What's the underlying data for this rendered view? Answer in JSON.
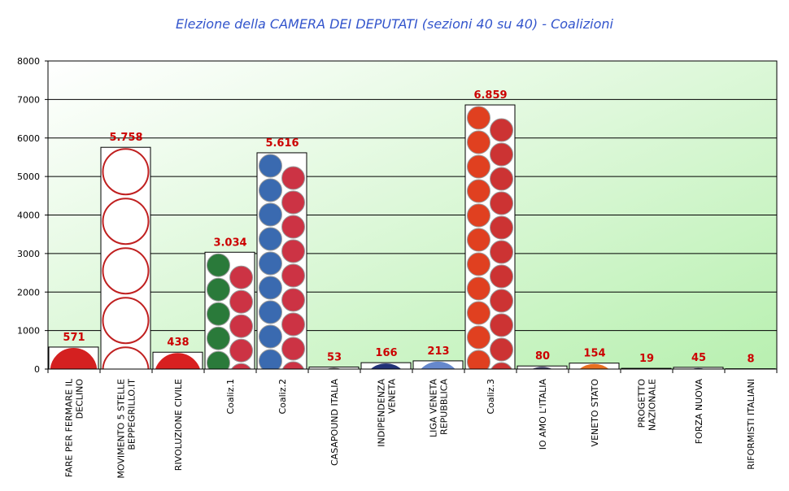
{
  "chart_data": {
    "type": "bar",
    "title": "Elezione della CAMERA DEI DEPUTATI (sezioni 40 su 40) - Coalizioni",
    "xlabel": "",
    "ylabel": "",
    "ylim": [
      0,
      8000
    ],
    "yticks": [
      0,
      1000,
      2000,
      3000,
      4000,
      5000,
      6000,
      7000,
      8000
    ],
    "grid": true,
    "categories": [
      [
        "FARE PER FERMARE IL",
        "DECLINO"
      ],
      [
        "MOVIMENTO 5 STELLE",
        "BEPPEGRILLO.IT"
      ],
      [
        "RIVOLUZIONE CIVILE"
      ],
      [
        "Coaliz.1"
      ],
      [
        "Coaliz.2"
      ],
      [
        "CASAPOUND ITALIA"
      ],
      [
        "INDIPENDENZA",
        "VENETA"
      ],
      [
        "LIGA VENETA",
        "REPUBBLICA"
      ],
      [
        "Coaliz.3"
      ],
      [
        "IO AMO L'ITALIA"
      ],
      [
        "VENETO STATO"
      ],
      [
        "PROGETTO",
        "NAZIONALE"
      ],
      [
        "FORZA NUOVA"
      ],
      [
        "RIFORMISTI ITALIANI"
      ]
    ],
    "values": [
      571,
      5758,
      438,
      3034,
      5616,
      53,
      166,
      213,
      6859,
      80,
      154,
      19,
      45,
      8
    ],
    "data_labels": [
      "571",
      "5.758",
      "438",
      "3.034",
      "5.616",
      "53",
      "166",
      "213",
      "6.859",
      "80",
      "154",
      "19",
      "45",
      "8"
    ],
    "logo_colors": [
      "#d42020",
      "#c02020",
      "#d82020",
      "#2a7a3a",
      "#3a6ab0",
      "#555555",
      "#223377",
      "#6688cc",
      "#e04020",
      "#444466",
      "#e87020",
      "#333333",
      "#333355",
      "#444444"
    ],
    "colors": {
      "title": "#3355cc",
      "label": "#cc0000",
      "grid": "#000000"
    }
  }
}
